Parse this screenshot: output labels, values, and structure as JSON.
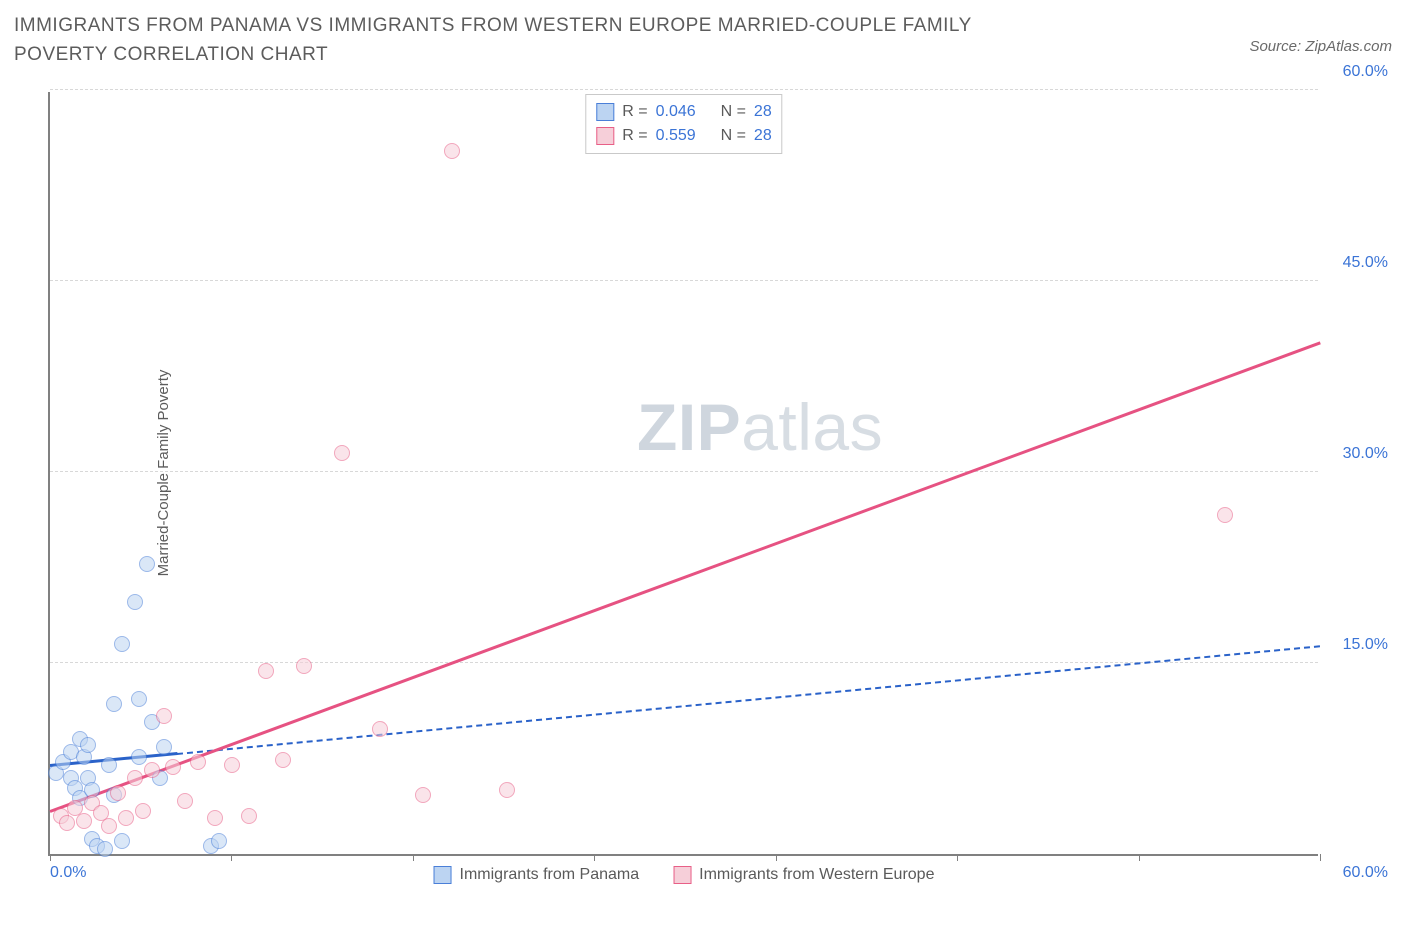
{
  "chart": {
    "type": "scatter",
    "title": "IMMIGRANTS FROM PANAMA VS IMMIGRANTS FROM WESTERN EUROPE MARRIED-COUPLE FAMILY POVERTY CORRELATION CHART",
    "source_label": "Source: ZipAtlas.com",
    "ylabel": "Married-Couple Family Poverty",
    "watermark": {
      "bold": "ZIP",
      "light": "atlas"
    },
    "xlim": [
      0,
      60
    ],
    "ylim": [
      0,
      60
    ],
    "y_ticks": [
      15,
      30,
      45,
      60
    ],
    "y_tick_labels": [
      "15.0%",
      "30.0%",
      "45.0%",
      "60.0%"
    ],
    "x_ticks": [
      0,
      8.57,
      17.14,
      25.71,
      34.29,
      42.86,
      51.43,
      60
    ],
    "x_start_label": "0.0%",
    "x_end_label": "60.0%",
    "grid_color": "#d8d8d8",
    "axis_color": "#808080",
    "background_color": "#ffffff",
    "point_radius": 8,
    "point_opacity": 0.55,
    "series": [
      {
        "name": "Immigrants from Panama",
        "color_fill": "#bcd4f2",
        "color_stroke": "#4a7fd8",
        "R": "0.046",
        "N": "28",
        "trend": {
          "x1": 0,
          "y1": 6.8,
          "x2": 60,
          "y2": 16.2,
          "style": "dashed",
          "solid_until_x": 6,
          "color": "#2a62c9"
        },
        "points": [
          [
            0.3,
            6.4
          ],
          [
            0.6,
            7.2
          ],
          [
            1.0,
            8.0
          ],
          [
            1.0,
            6.0
          ],
          [
            1.2,
            5.2
          ],
          [
            1.4,
            4.4
          ],
          [
            1.4,
            9.0
          ],
          [
            1.6,
            7.6
          ],
          [
            1.8,
            6.0
          ],
          [
            1.8,
            8.6
          ],
          [
            2.0,
            5.0
          ],
          [
            2.0,
            1.2
          ],
          [
            2.2,
            0.6
          ],
          [
            2.6,
            0.4
          ],
          [
            2.8,
            7.0
          ],
          [
            3.0,
            4.6
          ],
          [
            3.0,
            11.8
          ],
          [
            3.4,
            16.5
          ],
          [
            3.4,
            1.0
          ],
          [
            4.0,
            19.8
          ],
          [
            4.2,
            12.2
          ],
          [
            4.2,
            7.6
          ],
          [
            4.6,
            22.8
          ],
          [
            4.8,
            10.4
          ],
          [
            5.2,
            6.0
          ],
          [
            5.4,
            8.4
          ],
          [
            7.6,
            0.6
          ],
          [
            8.0,
            1.0
          ]
        ]
      },
      {
        "name": "Immigrants from Western Europe",
        "color_fill": "#f6cfd9",
        "color_stroke": "#e85f87",
        "R": "0.559",
        "N": "28",
        "trend": {
          "x1": 0,
          "y1": 3.2,
          "x2": 60,
          "y2": 40.0,
          "style": "solid",
          "color": "#e65282"
        },
        "points": [
          [
            0.5,
            3.0
          ],
          [
            0.8,
            2.4
          ],
          [
            1.2,
            3.6
          ],
          [
            1.6,
            2.6
          ],
          [
            2.0,
            4.0
          ],
          [
            2.4,
            3.2
          ],
          [
            2.8,
            2.2
          ],
          [
            3.2,
            4.8
          ],
          [
            3.6,
            2.8
          ],
          [
            4.0,
            6.0
          ],
          [
            4.4,
            3.4
          ],
          [
            4.8,
            6.6
          ],
          [
            5.4,
            10.8
          ],
          [
            5.8,
            6.8
          ],
          [
            6.4,
            4.2
          ],
          [
            7.0,
            7.2
          ],
          [
            7.8,
            2.8
          ],
          [
            8.6,
            7.0
          ],
          [
            9.4,
            3.0
          ],
          [
            10.2,
            14.4
          ],
          [
            11.0,
            7.4
          ],
          [
            12.0,
            14.8
          ],
          [
            13.8,
            31.5
          ],
          [
            15.6,
            9.8
          ],
          [
            17.6,
            4.6
          ],
          [
            19.0,
            55.2
          ],
          [
            21.6,
            5.0
          ],
          [
            55.5,
            26.6
          ]
        ]
      }
    ]
  }
}
